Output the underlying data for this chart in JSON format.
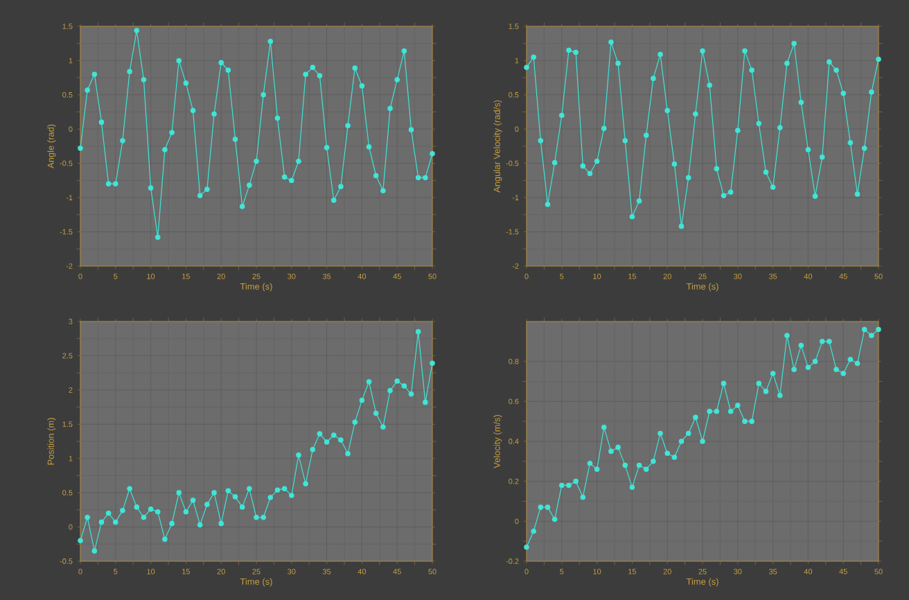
{
  "chart_data": [
    {
      "type": "line",
      "xlabel": "Time (s)",
      "ylabel": "Angle (rad)",
      "color": "#3ee6d8",
      "marker": "circle",
      "grid": true,
      "x": [
        0,
        1,
        2,
        3,
        4,
        5,
        6,
        7,
        8,
        9,
        10,
        11,
        12,
        13,
        14,
        15,
        16,
        17,
        18,
        19,
        20,
        21,
        22,
        23,
        24,
        25,
        26,
        27,
        28,
        29,
        30,
        31,
        32,
        33,
        34,
        35,
        36,
        37,
        38,
        39,
        40,
        41,
        42,
        43,
        44,
        45,
        46,
        47,
        48,
        49,
        50
      ],
      "values": [
        -0.28,
        0.57,
        0.8,
        0.1,
        -0.8,
        -0.8,
        -0.17,
        0.84,
        1.44,
        0.72,
        -0.86,
        -1.58,
        -0.3,
        -0.05,
        1.0,
        0.67,
        0.27,
        -0.97,
        -0.88,
        0.22,
        0.97,
        0.86,
        -0.15,
        -1.13,
        -0.82,
        -0.47,
        0.5,
        1.28,
        0.16,
        -0.7,
        -0.75,
        -0.47,
        0.8,
        0.9,
        0.78,
        -0.27,
        -1.04,
        -0.84,
        0.05,
        0.89,
        0.63,
        -0.26,
        -0.68,
        -0.9,
        0.3,
        0.72,
        1.14,
        -0.01,
        -0.71,
        -0.71,
        -0.36
      ],
      "xlim": [
        0,
        50
      ],
      "ylim": [
        -2,
        1.5
      ],
      "xticks": [
        0,
        5,
        10,
        15,
        20,
        25,
        30,
        35,
        40,
        45,
        50
      ],
      "yticks": [
        -2,
        -1.5,
        -1,
        -0.5,
        0,
        0.5,
        1,
        1.5
      ]
    },
    {
      "type": "line",
      "xlabel": "Time (s)",
      "ylabel": "Angular Velocity (rad/s)",
      "color": "#3ee6d8",
      "marker": "circle",
      "grid": true,
      "x": [
        0,
        1,
        2,
        3,
        4,
        5,
        6,
        7,
        8,
        9,
        10,
        11,
        12,
        13,
        14,
        15,
        16,
        17,
        18,
        19,
        20,
        21,
        22,
        23,
        24,
        25,
        26,
        27,
        28,
        29,
        30,
        31,
        32,
        33,
        34,
        35,
        36,
        37,
        38,
        39,
        40,
        41,
        42,
        43,
        44,
        45,
        46,
        47,
        48,
        49,
        50
      ],
      "values": [
        0.9,
        1.05,
        -0.17,
        -1.1,
        -0.49,
        0.2,
        1.15,
        1.12,
        -0.54,
        -0.65,
        -0.47,
        0.01,
        1.27,
        0.96,
        -0.17,
        -1.28,
        -1.05,
        -0.09,
        0.74,
        1.09,
        0.27,
        -0.51,
        -1.42,
        -0.71,
        0.22,
        1.14,
        0.64,
        -0.58,
        -0.97,
        -0.92,
        -0.02,
        1.14,
        0.86,
        0.08,
        -0.63,
        -0.85,
        0.02,
        0.96,
        1.25,
        0.39,
        -0.3,
        -0.98,
        -0.41,
        0.98,
        0.86,
        0.52,
        -0.2,
        -0.95,
        -0.28,
        0.54,
        1.02
      ],
      "xlim": [
        0,
        50
      ],
      "ylim": [
        -2,
        1.5
      ],
      "xticks": [
        0,
        5,
        10,
        15,
        20,
        25,
        30,
        35,
        40,
        45,
        50
      ],
      "yticks": [
        -2,
        -1.5,
        -1,
        -0.5,
        0,
        0.5,
        1,
        1.5
      ]
    },
    {
      "type": "line",
      "xlabel": "Time (s)",
      "ylabel": "Position (m)",
      "color": "#3ee6d8",
      "marker": "circle",
      "grid": true,
      "x": [
        0,
        1,
        2,
        3,
        4,
        5,
        6,
        7,
        8,
        9,
        10,
        11,
        12,
        13,
        14,
        15,
        16,
        17,
        18,
        19,
        20,
        21,
        22,
        23,
        24,
        25,
        26,
        27,
        28,
        29,
        30,
        31,
        32,
        33,
        34,
        35,
        36,
        37,
        38,
        39,
        40,
        41,
        42,
        43,
        44,
        45,
        46,
        47,
        48,
        49,
        50
      ],
      "values": [
        -0.2,
        0.14,
        -0.35,
        0.07,
        0.2,
        0.07,
        0.24,
        0.56,
        0.29,
        0.14,
        0.26,
        0.22,
        -0.18,
        0.05,
        0.5,
        0.22,
        0.39,
        0.03,
        0.33,
        0.5,
        0.05,
        0.53,
        0.44,
        0.29,
        0.56,
        0.14,
        0.14,
        0.43,
        0.54,
        0.56,
        0.46,
        1.05,
        0.63,
        1.13,
        1.36,
        1.24,
        1.34,
        1.27,
        1.07,
        1.53,
        1.85,
        2.12,
        1.66,
        1.46,
        1.99,
        2.13,
        2.06,
        1.94,
        2.85,
        1.82,
        2.39
      ],
      "xlim": [
        0,
        50
      ],
      "ylim": [
        -0.5,
        3
      ],
      "xticks": [
        0,
        5,
        10,
        15,
        20,
        25,
        30,
        35,
        40,
        45,
        50
      ],
      "yticks": [
        -0.5,
        0,
        0.5,
        1,
        1.5,
        2,
        2.5,
        3
      ]
    },
    {
      "type": "line",
      "xlabel": "Time (s)",
      "ylabel": "Velocity (m/s)",
      "color": "#3ee6d8",
      "marker": "circle",
      "grid": true,
      "x": [
        0,
        1,
        2,
        3,
        4,
        5,
        6,
        7,
        8,
        9,
        10,
        11,
        12,
        13,
        14,
        15,
        16,
        17,
        18,
        19,
        20,
        21,
        22,
        23,
        24,
        25,
        26,
        27,
        28,
        29,
        30,
        31,
        32,
        33,
        34,
        35,
        36,
        37,
        38,
        39,
        40,
        41,
        42,
        43,
        44,
        45,
        46,
        47,
        48,
        49,
        50
      ],
      "values": [
        -0.13,
        -0.05,
        0.07,
        0.07,
        0.01,
        0.18,
        0.18,
        0.2,
        0.12,
        0.29,
        0.26,
        0.47,
        0.35,
        0.37,
        0.28,
        0.17,
        0.28,
        0.26,
        0.3,
        0.44,
        0.34,
        0.32,
        0.4,
        0.44,
        0.52,
        0.4,
        0.55,
        0.55,
        0.69,
        0.55,
        0.58,
        0.5,
        0.5,
        0.69,
        0.65,
        0.74,
        0.63,
        0.93,
        0.76,
        0.88,
        0.77,
        0.8,
        0.9,
        0.9,
        0.76,
        0.74,
        0.81,
        0.79,
        0.96,
        0.93,
        0.96
      ],
      "xlim": [
        0,
        50
      ],
      "ylim": [
        -0.2,
        1
      ],
      "xticks": [
        0,
        5,
        10,
        15,
        20,
        25,
        30,
        35,
        40,
        45,
        50
      ],
      "yticks": [
        -0.2,
        0,
        0.2,
        0.4,
        0.6,
        0.8
      ]
    }
  ]
}
